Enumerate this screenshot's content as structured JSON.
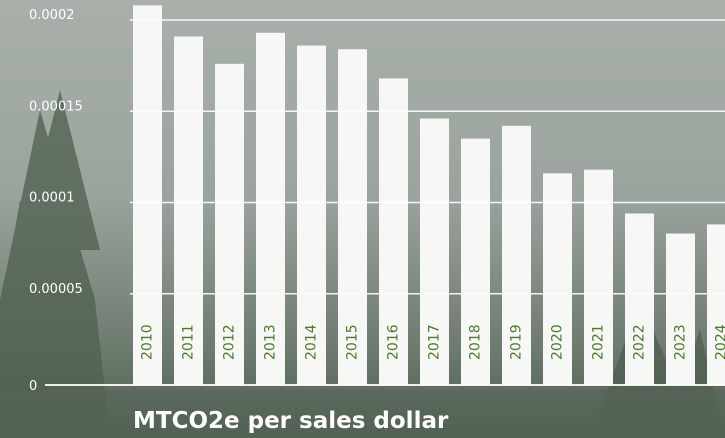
{
  "chart_data": {
    "type": "bar",
    "title": "MTCO2e per sales dollar",
    "categories": [
      "2010",
      "2011",
      "2012",
      "2013",
      "2014",
      "2015",
      "2016",
      "2017",
      "2018",
      "2019",
      "2020",
      "2021",
      "2022",
      "2023",
      "2024"
    ],
    "values": [
      0.000208,
      0.000191,
      0.000176,
      0.000193,
      0.000186,
      0.000184,
      0.000168,
      0.000146,
      0.000135,
      0.000142,
      0.000116,
      0.000118,
      9.4e-05,
      8.3e-05,
      8.8e-05
    ],
    "color": "#f7f7f6",
    "label_color": "#4e7a2c",
    "ylim": [
      0,
      0.00021
    ],
    "yticks": [
      0,
      5e-05,
      0.0001,
      0.00015,
      0.0002
    ],
    "grid": true
  }
}
